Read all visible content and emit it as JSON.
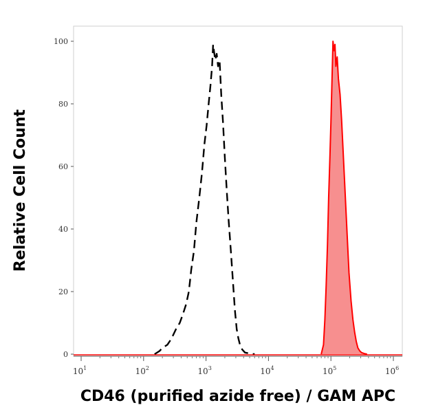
{
  "chart_data": {
    "type": "area",
    "title": "",
    "xlabel": "CD46 (purified azide free) / GAM APC",
    "ylabel": "Relative Cell Count",
    "xscale": "log",
    "xlim": [
      10,
      1000000
    ],
    "ylim": [
      0,
      100
    ],
    "x_tick_labels": [
      {
        "base": "10",
        "exp": "1",
        "value": 10
      },
      {
        "base": "10",
        "exp": "2",
        "value": 100
      },
      {
        "base": "10",
        "exp": "3",
        "value": 1000
      },
      {
        "base": "10",
        "exp": "4",
        "value": 10000
      },
      {
        "base": "10",
        "exp": "5",
        "value": 100000
      },
      {
        "base": "10",
        "exp": "6",
        "value": 1000000
      }
    ],
    "y_ticks": [
      0,
      20,
      40,
      60,
      80,
      100
    ],
    "y_tick_labels": [
      "0",
      "20",
      "40",
      "60",
      "80",
      "100"
    ],
    "grid": false,
    "legend": "none",
    "series": [
      {
        "style": "dashed",
        "color": "#000000",
        "fill": "none",
        "x": [
          150,
          180,
          200,
          240,
          280,
          330,
          380,
          430,
          480,
          530,
          580,
          640,
          700,
          780,
          860,
          940,
          1020,
          1100,
          1180,
          1250,
          1300,
          1340,
          1400,
          1480,
          1560,
          1650,
          1750,
          1870,
          2000,
          2150,
          2300,
          2500,
          2700,
          2900,
          3100,
          3300,
          3500,
          3800,
          4200,
          5000,
          6000
        ],
        "y": [
          0,
          1,
          2,
          3,
          5,
          8,
          10,
          13,
          16,
          20,
          27,
          33,
          42,
          50,
          58,
          67,
          73,
          80,
          86,
          92,
          99,
          97,
          94,
          96,
          92,
          94,
          83,
          74,
          63,
          52,
          43,
          33,
          23,
          14,
          8,
          5,
          3,
          1.5,
          0.5,
          0.2,
          0
        ]
      },
      {
        "style": "solid",
        "color": "#ff0000",
        "fill": "#f78f8f",
        "x": [
          70000,
          76000,
          80000,
          84000,
          88000,
          92000,
          96000,
          100000,
          104000,
          108000,
          112000,
          116000,
          120000,
          126000,
          132000,
          140000,
          148000,
          156000,
          165000,
          175000,
          185000,
          195000,
          210000,
          225000,
          240000,
          255000,
          270000,
          290000,
          310000,
          340000,
          380000
        ],
        "y": [
          0,
          3,
          11,
          22,
          35,
          50,
          62,
          74,
          87,
          100,
          97,
          99,
          92,
          95,
          88,
          83,
          75,
          66,
          56,
          45,
          35,
          26,
          17,
          11,
          7,
          4,
          2,
          1,
          0.5,
          0.2,
          0
        ]
      }
    ]
  }
}
